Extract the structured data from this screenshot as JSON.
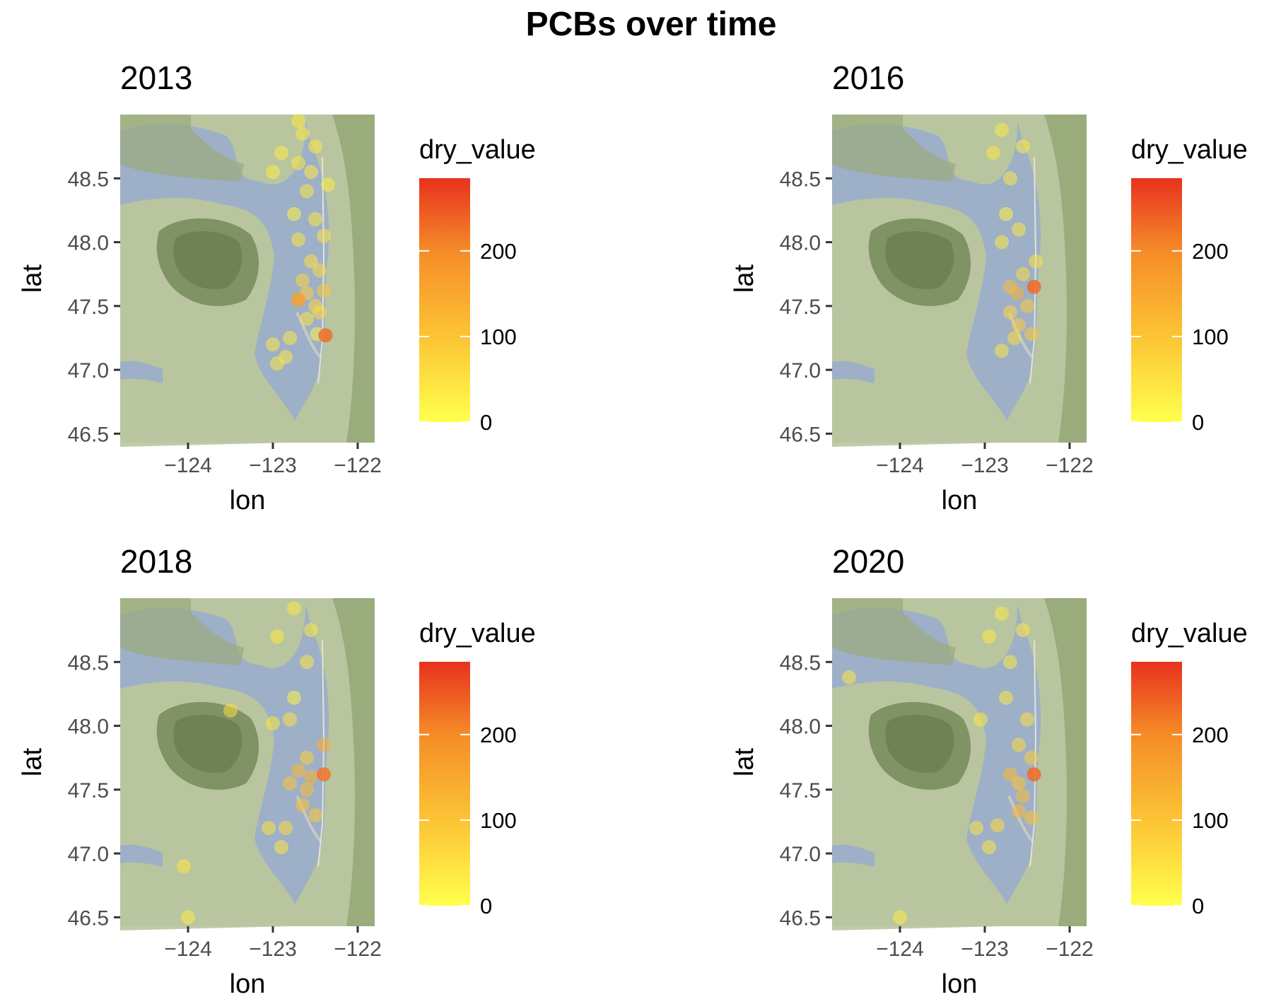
{
  "title": "PCBs over time",
  "colors": {
    "low": "#ffff4d",
    "mid": "#f6a623",
    "high": "#e8321e",
    "water": "#9db0c8",
    "land": "#b6c49a",
    "mountain": "#7e9163"
  },
  "chart_data": [
    {
      "type": "scatter",
      "title": "2013",
      "xlabel": "lon",
      "ylabel": "lat",
      "xlim": [
        -124.8,
        -121.8
      ],
      "ylim": [
        46.43,
        49.0
      ],
      "xticks": [
        -124,
        -123,
        -122
      ],
      "xtick_labels": [
        "−124",
        "−123",
        "−122"
      ],
      "yticks": [
        46.5,
        47.0,
        47.5,
        48.0,
        48.5
      ],
      "ytick_labels": [
        "46.5",
        "47.0",
        "47.5",
        "48.0",
        "48.5"
      ],
      "legend": {
        "title": "dry_value",
        "ticks": [
          0,
          100,
          200
        ],
        "tick_labels": [
          "0",
          "100",
          "200"
        ],
        "range": [
          0,
          285
        ],
        "placement": "right"
      },
      "points": [
        {
          "lon": -122.7,
          "lat": 48.95,
          "value": 40
        },
        {
          "lon": -122.65,
          "lat": 48.85,
          "value": 35
        },
        {
          "lon": -122.5,
          "lat": 48.75,
          "value": 40
        },
        {
          "lon": -122.9,
          "lat": 48.7,
          "value": 30
        },
        {
          "lon": -122.7,
          "lat": 48.62,
          "value": 40
        },
        {
          "lon": -122.55,
          "lat": 48.55,
          "value": 35
        },
        {
          "lon": -123.0,
          "lat": 48.55,
          "value": 30
        },
        {
          "lon": -122.6,
          "lat": 48.4,
          "value": 40
        },
        {
          "lon": -122.35,
          "lat": 48.45,
          "value": 30
        },
        {
          "lon": -122.75,
          "lat": 48.22,
          "value": 20
        },
        {
          "lon": -122.5,
          "lat": 48.18,
          "value": 40
        },
        {
          "lon": -122.4,
          "lat": 48.05,
          "value": 45
        },
        {
          "lon": -122.7,
          "lat": 48.02,
          "value": 40
        },
        {
          "lon": -122.55,
          "lat": 47.85,
          "value": 50
        },
        {
          "lon": -122.45,
          "lat": 47.78,
          "value": 60
        },
        {
          "lon": -122.65,
          "lat": 47.7,
          "value": 70
        },
        {
          "lon": -122.4,
          "lat": 47.62,
          "value": 90
        },
        {
          "lon": -122.6,
          "lat": 47.6,
          "value": 80
        },
        {
          "lon": -122.7,
          "lat": 47.55,
          "value": 160
        },
        {
          "lon": -122.5,
          "lat": 47.5,
          "value": 70
        },
        {
          "lon": -122.45,
          "lat": 47.45,
          "value": 60
        },
        {
          "lon": -122.6,
          "lat": 47.4,
          "value": 50
        },
        {
          "lon": -122.48,
          "lat": 47.28,
          "value": 20
        },
        {
          "lon": -122.38,
          "lat": 47.27,
          "value": 230
        },
        {
          "lon": -122.8,
          "lat": 47.25,
          "value": 40
        },
        {
          "lon": -123.0,
          "lat": 47.2,
          "value": 40
        },
        {
          "lon": -122.85,
          "lat": 47.1,
          "value": 35
        },
        {
          "lon": -122.95,
          "lat": 47.05,
          "value": 40
        }
      ]
    },
    {
      "type": "scatter",
      "title": "2016",
      "xlabel": "lon",
      "ylabel": "lat",
      "xlim": [
        -124.8,
        -121.8
      ],
      "ylim": [
        46.43,
        49.0
      ],
      "xticks": [
        -124,
        -123,
        -122
      ],
      "xtick_labels": [
        "−124",
        "−123",
        "−122"
      ],
      "yticks": [
        46.5,
        47.0,
        47.5,
        48.0,
        48.5
      ],
      "ytick_labels": [
        "46.5",
        "47.0",
        "47.5",
        "48.0",
        "48.5"
      ],
      "legend": {
        "title": "dry_value",
        "ticks": [
          0,
          100,
          200
        ],
        "tick_labels": [
          "0",
          "100",
          "200"
        ],
        "range": [
          0,
          285
        ],
        "placement": "right"
      },
      "points": [
        {
          "lon": -122.8,
          "lat": 48.88,
          "value": 35
        },
        {
          "lon": -122.55,
          "lat": 48.75,
          "value": 35
        },
        {
          "lon": -122.9,
          "lat": 48.7,
          "value": 40
        },
        {
          "lon": -122.7,
          "lat": 48.5,
          "value": 40
        },
        {
          "lon": -122.75,
          "lat": 48.22,
          "value": 20
        },
        {
          "lon": -122.6,
          "lat": 48.1,
          "value": 40
        },
        {
          "lon": -122.8,
          "lat": 48.0,
          "value": 40
        },
        {
          "lon": -122.4,
          "lat": 47.85,
          "value": 50
        },
        {
          "lon": -122.55,
          "lat": 47.75,
          "value": 60
        },
        {
          "lon": -122.7,
          "lat": 47.65,
          "value": 110
        },
        {
          "lon": -122.62,
          "lat": 47.6,
          "value": 130
        },
        {
          "lon": -122.42,
          "lat": 47.65,
          "value": 230
        },
        {
          "lon": -122.5,
          "lat": 47.5,
          "value": 90
        },
        {
          "lon": -122.7,
          "lat": 47.45,
          "value": 70
        },
        {
          "lon": -122.6,
          "lat": 47.35,
          "value": 80
        },
        {
          "lon": -122.45,
          "lat": 47.28,
          "value": 90
        },
        {
          "lon": -122.65,
          "lat": 47.25,
          "value": 60
        },
        {
          "lon": -122.8,
          "lat": 47.15,
          "value": 40
        }
      ]
    },
    {
      "type": "scatter",
      "title": "2018",
      "xlabel": "lon",
      "ylabel": "lat",
      "xlim": [
        -124.8,
        -121.8
      ],
      "ylim": [
        46.43,
        49.0
      ],
      "xticks": [
        -124,
        -123,
        -122
      ],
      "xtick_labels": [
        "−124",
        "−123",
        "−122"
      ],
      "yticks": [
        46.5,
        47.0,
        47.5,
        48.0,
        48.5
      ],
      "ytick_labels": [
        "46.5",
        "47.0",
        "47.5",
        "48.0",
        "48.5"
      ],
      "legend": {
        "title": "dry_value",
        "ticks": [
          0,
          100,
          200
        ],
        "tick_labels": [
          "0",
          "100",
          "200"
        ],
        "range": [
          0,
          285
        ],
        "placement": "right"
      },
      "points": [
        {
          "lon": -122.75,
          "lat": 48.92,
          "value": 35
        },
        {
          "lon": -122.55,
          "lat": 48.75,
          "value": 40
        },
        {
          "lon": -122.95,
          "lat": 48.7,
          "value": 40
        },
        {
          "lon": -122.6,
          "lat": 48.5,
          "value": 40
        },
        {
          "lon": -122.75,
          "lat": 48.22,
          "value": 20
        },
        {
          "lon": -123.5,
          "lat": 48.12,
          "value": 60
        },
        {
          "lon": -122.8,
          "lat": 48.05,
          "value": 50
        },
        {
          "lon": -123.0,
          "lat": 48.02,
          "value": 40
        },
        {
          "lon": -122.4,
          "lat": 47.85,
          "value": 140
        },
        {
          "lon": -122.6,
          "lat": 47.75,
          "value": 80
        },
        {
          "lon": -122.7,
          "lat": 47.65,
          "value": 120
        },
        {
          "lon": -122.55,
          "lat": 47.6,
          "value": 130
        },
        {
          "lon": -122.4,
          "lat": 47.62,
          "value": 220
        },
        {
          "lon": -122.8,
          "lat": 47.55,
          "value": 100
        },
        {
          "lon": -122.6,
          "lat": 47.5,
          "value": 110
        },
        {
          "lon": -122.65,
          "lat": 47.38,
          "value": 100
        },
        {
          "lon": -122.5,
          "lat": 47.3,
          "value": 90
        },
        {
          "lon": -122.85,
          "lat": 47.2,
          "value": 60
        },
        {
          "lon": -123.05,
          "lat": 47.2,
          "value": 50
        },
        {
          "lon": -122.9,
          "lat": 47.05,
          "value": 40
        },
        {
          "lon": -124.05,
          "lat": 46.9,
          "value": 40
        },
        {
          "lon": -124.0,
          "lat": 46.5,
          "value": 30
        }
      ]
    },
    {
      "type": "scatter",
      "title": "2020",
      "xlabel": "lon",
      "ylabel": "lat",
      "xlim": [
        -124.8,
        -121.8
      ],
      "ylim": [
        46.43,
        49.0
      ],
      "xticks": [
        -124,
        -123,
        -122
      ],
      "xtick_labels": [
        "−124",
        "−123",
        "−122"
      ],
      "yticks": [
        46.5,
        47.0,
        47.5,
        48.0,
        48.5
      ],
      "ytick_labels": [
        "46.5",
        "47.0",
        "47.5",
        "48.0",
        "48.5"
      ],
      "legend": {
        "title": "dry_value",
        "ticks": [
          0,
          100,
          200
        ],
        "tick_labels": [
          "0",
          "100",
          "200"
        ],
        "range": [
          0,
          285
        ],
        "placement": "right"
      },
      "points": [
        {
          "lon": -122.8,
          "lat": 48.88,
          "value": 35
        },
        {
          "lon": -122.55,
          "lat": 48.75,
          "value": 35
        },
        {
          "lon": -122.95,
          "lat": 48.7,
          "value": 40
        },
        {
          "lon": -124.6,
          "lat": 48.38,
          "value": 40
        },
        {
          "lon": -122.7,
          "lat": 48.5,
          "value": 40
        },
        {
          "lon": -122.75,
          "lat": 48.22,
          "value": 40
        },
        {
          "lon": -122.5,
          "lat": 48.05,
          "value": 50
        },
        {
          "lon": -123.05,
          "lat": 48.05,
          "value": 40
        },
        {
          "lon": -122.6,
          "lat": 47.85,
          "value": 60
        },
        {
          "lon": -122.45,
          "lat": 47.75,
          "value": 80
        },
        {
          "lon": -122.7,
          "lat": 47.62,
          "value": 120
        },
        {
          "lon": -122.6,
          "lat": 47.55,
          "value": 100
        },
        {
          "lon": -122.42,
          "lat": 47.62,
          "value": 230
        },
        {
          "lon": -122.55,
          "lat": 47.45,
          "value": 110
        },
        {
          "lon": -122.6,
          "lat": 47.33,
          "value": 120
        },
        {
          "lon": -122.45,
          "lat": 47.28,
          "value": 100
        },
        {
          "lon": -122.85,
          "lat": 47.22,
          "value": 60
        },
        {
          "lon": -123.1,
          "lat": 47.2,
          "value": 50
        },
        {
          "lon": -122.95,
          "lat": 47.05,
          "value": 40
        },
        {
          "lon": -124.0,
          "lat": 46.5,
          "value": 30
        }
      ]
    }
  ]
}
